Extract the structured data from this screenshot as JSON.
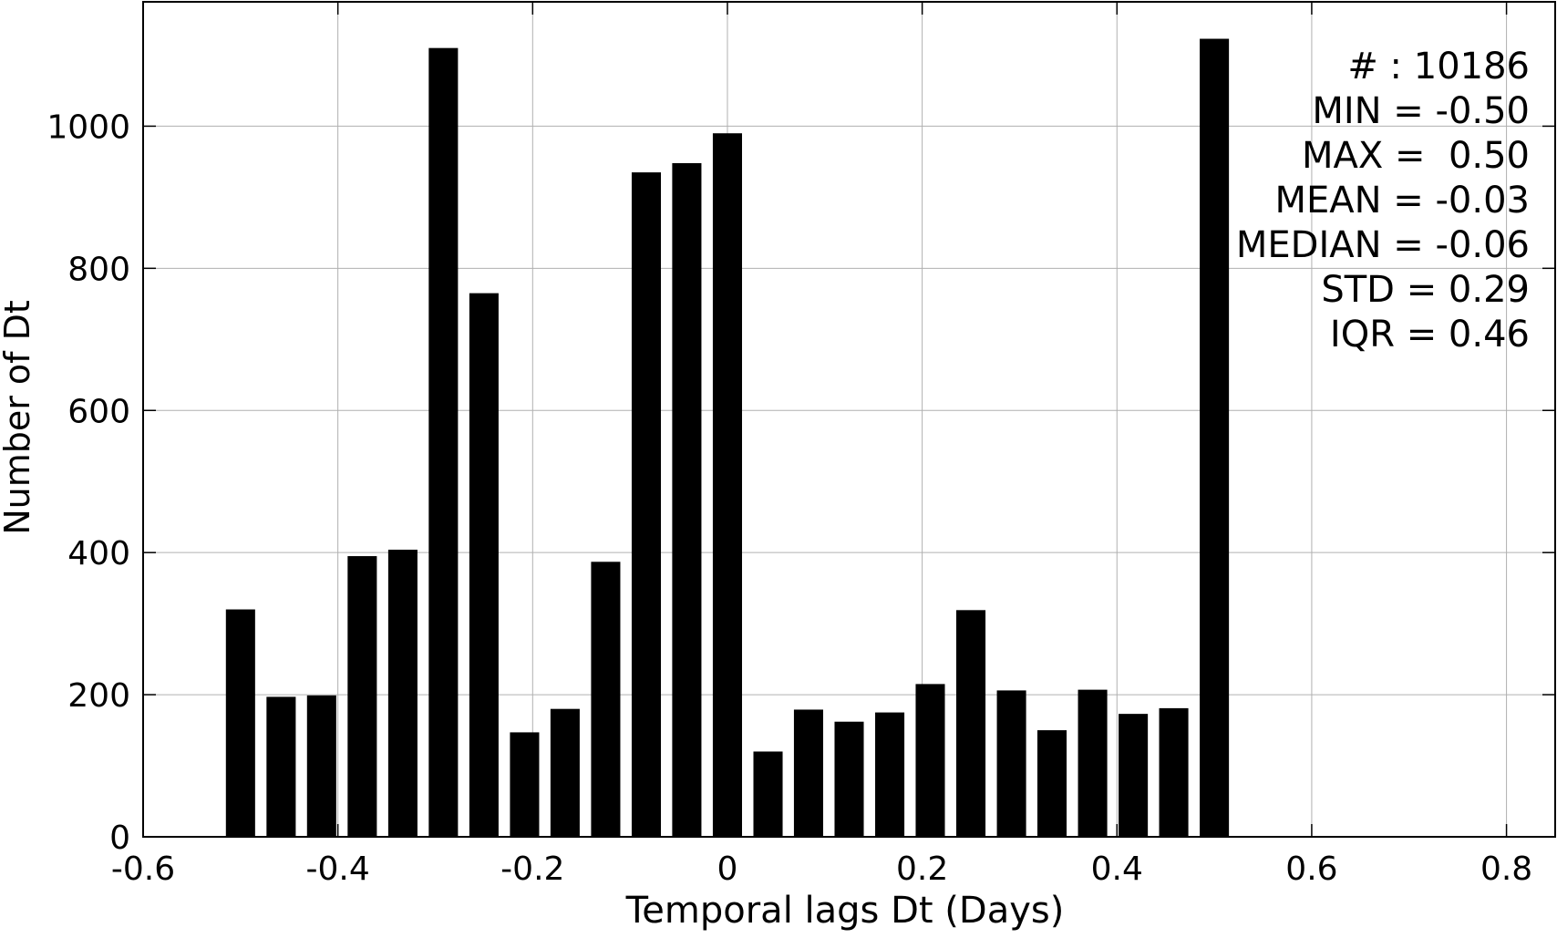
{
  "chart_data": {
    "type": "bar",
    "title": "",
    "xlabel": "Temporal lags Dt (Days)",
    "ylabel": "Number of Dt",
    "xlim": [
      -0.6,
      0.85
    ],
    "ylim": [
      0,
      1175
    ],
    "grid": true,
    "bar_color": "#000000",
    "grid_color": "#b0b0b0",
    "x_ticks": [
      -0.6,
      -0.4,
      -0.2,
      0,
      0.2,
      0.4,
      0.6,
      0.8
    ],
    "x_tick_labels": [
      "-0.6",
      "-0.4",
      "-0.2",
      "0",
      "0.2",
      "0.4",
      "0.6",
      "0.8"
    ],
    "y_ticks": [
      0,
      200,
      400,
      600,
      800,
      1000
    ],
    "y_tick_labels": [
      "0",
      "200",
      "400",
      "600",
      "800",
      "1000"
    ],
    "bin_width": 0.0417,
    "bar_width": 0.03,
    "x": [
      -0.5,
      -0.4583,
      -0.4167,
      -0.375,
      -0.3333,
      -0.2917,
      -0.25,
      -0.2083,
      -0.1667,
      -0.125,
      -0.0833,
      -0.0417,
      0.0,
      0.0417,
      0.0833,
      0.125,
      0.1667,
      0.2083,
      0.25,
      0.2917,
      0.3333,
      0.375,
      0.4167,
      0.4583,
      0.5
    ],
    "values": [
      320,
      197,
      199,
      395,
      404,
      1110,
      765,
      147,
      180,
      387,
      935,
      948,
      990,
      120,
      179,
      162,
      175,
      215,
      319,
      206,
      150,
      207,
      173,
      181,
      1123
    ],
    "stats_annotation": [
      "# : 10186",
      "MIN = -0.50",
      "MAX =  0.50",
      "MEAN = -0.03",
      "MEDIAN = -0.06",
      "STD = 0.29",
      "IQR = 0.46"
    ],
    "annotation_placement": "top-right"
  }
}
